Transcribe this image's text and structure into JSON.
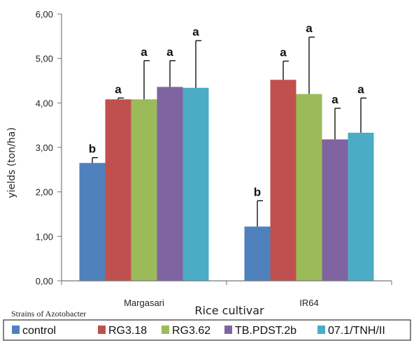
{
  "chart_data": {
    "type": "bar",
    "xlabel": "Rice cultivar",
    "ylabel": "yields (ton/ha)",
    "ylim": [
      0,
      6
    ],
    "yticks": [
      "0,00",
      "1,00",
      "2,00",
      "3,00",
      "4,00",
      "5,00",
      "6,00"
    ],
    "categories": [
      "Margasari",
      "IR64"
    ],
    "legend_title": "Strains of  Azotobacter",
    "legend_position": "bottom",
    "series": [
      {
        "name": "control",
        "color": "#4F81BD",
        "values": [
          2.65,
          1.22
        ],
        "errors": [
          0.12,
          0.58
        ],
        "labels": [
          "b",
          "b"
        ]
      },
      {
        "name": "RG3.18",
        "color": "#C0504D",
        "values": [
          4.08,
          4.52
        ],
        "errors": [
          0.03,
          0.42
        ],
        "labels": [
          "a",
          "a"
        ]
      },
      {
        "name": "RG3.62",
        "color": "#9BBB59",
        "values": [
          4.08,
          4.2
        ],
        "errors": [
          0.87,
          1.28
        ],
        "labels": [
          "a",
          "a"
        ]
      },
      {
        "name": "TB.PDST.2b",
        "color": "#8064A2",
        "values": [
          4.36,
          3.18
        ],
        "errors": [
          0.59,
          0.7
        ],
        "labels": [
          "a",
          "a"
        ]
      },
      {
        "name": "07.1/TNH/II",
        "color": "#4BACC6",
        "values": [
          4.34,
          3.33
        ],
        "errors": [
          1.06,
          0.78
        ],
        "labels": [
          "a",
          "a"
        ]
      }
    ]
  }
}
